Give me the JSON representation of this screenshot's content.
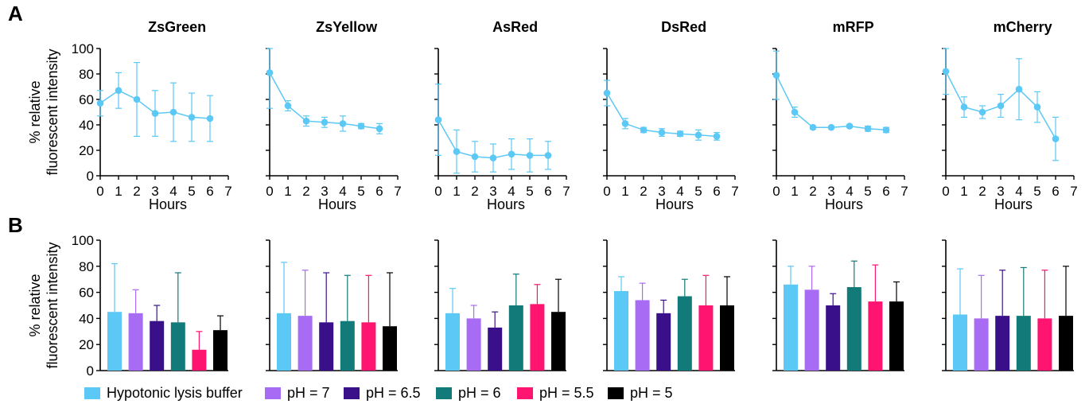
{
  "panel_labels": {
    "a": "A",
    "b": "B"
  },
  "top_y_title": [
    "% relative",
    "fluorescent intensity"
  ],
  "bottom_y_title": [
    "% relative",
    "fluorescent intensity"
  ],
  "x_title": "Hours",
  "line_color": "#5BC8F5",
  "chart_data": [
    {
      "type": "line",
      "title": "ZsGreen",
      "xlabel": "Hours",
      "ylabel": "% relative fluorescent intensity",
      "xlim": [
        0,
        7
      ],
      "ylim": [
        0,
        100
      ],
      "x": [
        0,
        1,
        2,
        3,
        4,
        5,
        6
      ],
      "values": [
        57,
        67,
        60,
        49,
        50,
        46,
        45
      ],
      "errors": [
        10,
        14,
        29,
        18,
        23,
        19,
        18
      ]
    },
    {
      "type": "line",
      "title": "ZsYellow",
      "xlabel": "Hours",
      "ylabel": "",
      "xlim": [
        0,
        7
      ],
      "ylim": [
        0,
        100
      ],
      "x": [
        0,
        1,
        2,
        3,
        4,
        5,
        6
      ],
      "values": [
        81,
        55,
        43,
        42,
        41,
        39,
        37
      ],
      "errors": [
        28,
        4,
        4,
        4,
        6,
        2,
        4
      ]
    },
    {
      "type": "line",
      "title": "AsRed",
      "xlabel": "Hours",
      "ylabel": "",
      "xlim": [
        0,
        7
      ],
      "ylim": [
        0,
        100
      ],
      "x": [
        0,
        1,
        2,
        3,
        4,
        5,
        6
      ],
      "values": [
        44,
        19,
        15,
        14,
        17,
        16,
        16
      ],
      "errors": [
        28,
        17,
        12,
        11,
        12,
        13,
        11
      ]
    },
    {
      "type": "line",
      "title": "DsRed",
      "xlabel": "Hours",
      "ylabel": "",
      "xlim": [
        0,
        7
      ],
      "ylim": [
        0,
        100
      ],
      "x": [
        0,
        1,
        2,
        3,
        4,
        5,
        6
      ],
      "values": [
        65,
        41,
        36,
        34,
        33,
        32,
        31
      ],
      "errors": [
        10,
        4,
        2,
        3,
        2,
        4,
        3
      ]
    },
    {
      "type": "line",
      "title": "mRFP",
      "xlabel": "Hours",
      "ylabel": "",
      "xlim": [
        0,
        7
      ],
      "ylim": [
        0,
        100
      ],
      "x": [
        0,
        1,
        2,
        3,
        4,
        5,
        6
      ],
      "values": [
        79,
        50,
        38,
        38,
        39,
        37,
        36
      ],
      "errors": [
        19,
        4,
        1,
        1,
        1,
        2,
        2
      ]
    },
    {
      "type": "line",
      "title": "mCherry",
      "xlabel": "Hours",
      "ylabel": "",
      "xlim": [
        0,
        7
      ],
      "ylim": [
        0,
        100
      ],
      "x": [
        0,
        1,
        2,
        3,
        4,
        5,
        6
      ],
      "values": [
        82,
        54,
        50,
        55,
        68,
        54,
        29
      ],
      "errors": [
        18,
        8,
        5,
        9,
        24,
        12,
        17
      ]
    },
    {
      "type": "bar",
      "title": "",
      "ylabel": "% relative fluorescent intensity",
      "ylim": [
        0,
        100
      ],
      "categories": [
        "Hypotonic lysis buffer",
        "pH = 7",
        "pH = 6.5",
        "pH = 6",
        "pH = 5.5",
        "pH = 5"
      ],
      "values": [
        45,
        44,
        38,
        37,
        16,
        31
      ],
      "errors": [
        37,
        18,
        12,
        38,
        14,
        11
      ]
    },
    {
      "type": "bar",
      "title": "",
      "ylabel": "",
      "ylim": [
        0,
        100
      ],
      "categories": [
        "Hypotonic lysis buffer",
        "pH = 7",
        "pH = 6.5",
        "pH = 6",
        "pH = 5.5",
        "pH = 5"
      ],
      "values": [
        44,
        42,
        37,
        38,
        37,
        34
      ],
      "errors": [
        39,
        35,
        38,
        35,
        36,
        41
      ]
    },
    {
      "type": "bar",
      "title": "",
      "ylabel": "",
      "ylim": [
        0,
        100
      ],
      "categories": [
        "Hypotonic lysis buffer",
        "pH = 7",
        "pH = 6.5",
        "pH = 6",
        "pH = 5.5",
        "pH = 5"
      ],
      "values": [
        44,
        40,
        33,
        50,
        51,
        45
      ],
      "errors": [
        19,
        10,
        12,
        24,
        15,
        25
      ]
    },
    {
      "type": "bar",
      "title": "",
      "ylabel": "",
      "ylim": [
        0,
        100
      ],
      "categories": [
        "Hypotonic lysis buffer",
        "pH = 7",
        "pH = 6.5",
        "pH = 6",
        "pH = 5.5",
        "pH = 5"
      ],
      "values": [
        61,
        54,
        44,
        57,
        50,
        50
      ],
      "errors": [
        11,
        13,
        10,
        13,
        23,
        22
      ]
    },
    {
      "type": "bar",
      "title": "",
      "ylabel": "",
      "ylim": [
        0,
        100
      ],
      "categories": [
        "Hypotonic lysis buffer",
        "pH = 7",
        "pH = 6.5",
        "pH = 6",
        "pH = 5.5",
        "pH = 5"
      ],
      "values": [
        66,
        62,
        50,
        64,
        53,
        53
      ],
      "errors": [
        14,
        18,
        9,
        20,
        28,
        15
      ]
    },
    {
      "type": "bar",
      "title": "",
      "ylabel": "",
      "ylim": [
        0,
        100
      ],
      "categories": [
        "Hypotonic lysis buffer",
        "pH = 7",
        "pH = 6.5",
        "pH = 6",
        "pH = 5.5",
        "pH = 5"
      ],
      "values": [
        43,
        40,
        42,
        42,
        40,
        42
      ],
      "errors": [
        35,
        33,
        35,
        37,
        37,
        38
      ]
    }
  ],
  "legend": [
    {
      "label": "Hypotonic lysis buffer",
      "color": "#5BC8F5"
    },
    {
      "label": "pH = 7",
      "color": "#A86CF4"
    },
    {
      "label": "pH = 6.5",
      "color": "#3A0F8A"
    },
    {
      "label": "pH = 6",
      "color": "#137A7A"
    },
    {
      "label": "pH = 5.5",
      "color": "#FF1470"
    },
    {
      "label": "pH = 5",
      "color": "#000000"
    }
  ]
}
